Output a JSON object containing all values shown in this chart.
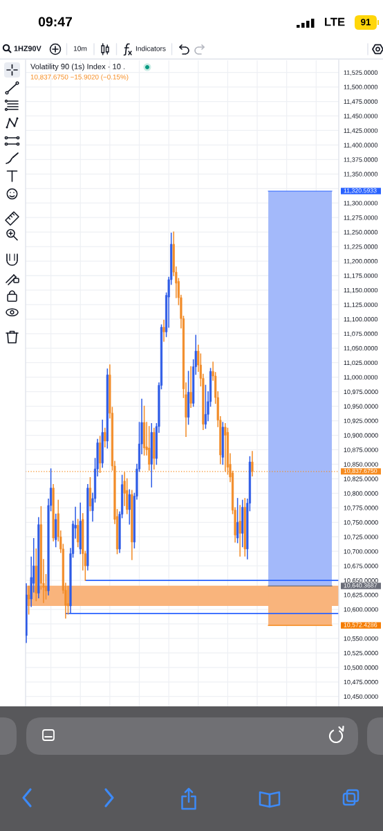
{
  "chart_data": {
    "type": "candlestick",
    "title": "Volatility 90 (1s) Index · 10 .",
    "subtitle": "10,837.6750 −15.9020 (−0.15%)",
    "annotations": [
      "09:47",
      "LTE",
      "91",
      "1HZ90V",
      "10m",
      "Indicators"
    ],
    "categories": [
      null,
      null,
      null,
      null,
      null,
      null,
      null,
      null,
      null,
      null,
      null,
      null,
      null,
      null,
      null,
      null,
      null,
      null,
      null,
      null,
      null,
      null,
      null,
      null,
      null,
      null,
      null,
      null,
      null,
      null,
      null,
      null,
      null,
      null,
      null,
      null,
      null,
      null,
      null,
      null,
      null,
      null,
      null,
      null,
      null,
      null,
      null,
      null,
      null,
      null,
      null,
      null,
      null,
      null,
      null,
      null,
      null,
      null,
      null,
      null,
      null,
      null,
      null,
      null,
      null,
      null,
      null,
      null,
      null,
      null,
      null,
      null,
      null,
      null,
      null,
      null,
      null,
      null,
      null,
      null,
      null,
      null,
      null,
      null,
      null,
      null,
      null,
      null,
      null,
      null,
      null,
      null,
      null,
      null,
      null,
      null,
      null,
      null,
      null,
      null,
      null,
      null,
      null,
      null,
      null,
      null,
      null,
      null,
      null,
      null,
      null,
      null,
      null,
      null,
      null,
      null,
      null,
      null,
      null,
      null,
      null,
      null,
      null,
      null,
      null,
      null,
      null,
      null
    ],
    "ohlc": [
      [
        10555,
        10644,
        10543,
        10625
      ],
      [
        10625,
        10640,
        10592,
        10618
      ],
      [
        10618,
        10690,
        10605,
        10655
      ],
      [
        10645,
        10722,
        10630,
        10675
      ],
      [
        10675,
        10704,
        10615,
        10628
      ],
      [
        10628,
        10758,
        10620,
        10746
      ],
      [
        10746,
        10777,
        10635,
        10645
      ],
      [
        10645,
        10686,
        10612,
        10638
      ],
      [
        10640,
        10660,
        10618,
        10632
      ],
      [
        10632,
        10790,
        10625,
        10779
      ],
      [
        10779,
        10842,
        10770,
        10809
      ],
      [
        10809,
        10815,
        10718,
        10723
      ],
      [
        10720,
        10764,
        10708,
        10755
      ],
      [
        10765,
        10788,
        10718,
        10725
      ],
      [
        10725,
        10735,
        10698,
        10704
      ],
      [
        10704,
        10712,
        10628,
        10633
      ],
      [
        10633,
        10645,
        10585,
        10607
      ],
      [
        10610,
        10640,
        10592,
        10606
      ],
      [
        10606,
        10705,
        10594,
        10696
      ],
      [
        10696,
        10752,
        10690,
        10747
      ],
      [
        10740,
        10776,
        10723,
        10745
      ],
      [
        10745,
        10755,
        10708,
        10716
      ],
      [
        10704,
        10783,
        10696,
        10752
      ],
      [
        10755,
        10765,
        10668,
        10696
      ],
      [
        10696,
        10700,
        10650,
        10675
      ],
      [
        10675,
        10815,
        10668,
        10809
      ],
      [
        10809,
        10827,
        10770,
        10778
      ],
      [
        10770,
        10800,
        10752,
        10791
      ],
      [
        10791,
        10860,
        10785,
        10842
      ],
      [
        10842,
        10893,
        10830,
        10887
      ],
      [
        10887,
        10898,
        10836,
        10852
      ],
      [
        10852,
        10926,
        10845,
        10905
      ],
      [
        10905,
        10912,
        10880,
        10890
      ],
      [
        10890,
        11014,
        10878,
        11004
      ],
      [
        11004,
        11021,
        10930,
        10938
      ],
      [
        10938,
        10948,
        10840,
        10847
      ],
      [
        10847,
        10855,
        10748,
        10755
      ],
      [
        10760,
        10772,
        10696,
        10704
      ],
      [
        10704,
        10768,
        10698,
        10764
      ],
      [
        10764,
        10831,
        10758,
        10815
      ],
      [
        10821,
        10836,
        10779,
        10800
      ],
      [
        10805,
        10825,
        10765,
        10772
      ],
      [
        10772,
        10806,
        10747,
        10798
      ],
      [
        10798,
        10805,
        10686,
        10716
      ],
      [
        10716,
        10800,
        10706,
        10795
      ],
      [
        10795,
        10850,
        10790,
        10842
      ],
      [
        10842,
        10922,
        10838,
        10885
      ],
      [
        10885,
        10962,
        10868,
        10922
      ],
      [
        10922,
        10950,
        10866,
        10878
      ],
      [
        10880,
        10922,
        10866,
        10875
      ],
      [
        10878,
        10915,
        10840,
        10850
      ],
      [
        10850,
        10920,
        10811,
        10905
      ],
      [
        10905,
        10912,
        10842,
        10860
      ],
      [
        10860,
        10920,
        10850,
        10915
      ],
      [
        10915,
        10990,
        10905,
        10986
      ],
      [
        10986,
        11090,
        10980,
        11086
      ],
      [
        11086,
        11098,
        11062,
        11078
      ],
      [
        11078,
        11145,
        11070,
        11141
      ],
      [
        11138,
        11172,
        11086,
        11168
      ],
      [
        11168,
        11248,
        11160,
        11229
      ],
      [
        11229,
        11250,
        11175,
        11181
      ],
      [
        11181,
        11190,
        11137,
        11162
      ],
      [
        11165,
        11170,
        11125,
        11137
      ],
      [
        11137,
        11141,
        11085,
        11101
      ],
      [
        11101,
        11105,
        10965,
        10980
      ],
      [
        10970,
        10990,
        10898,
        10931
      ],
      [
        10931,
        11010,
        10919,
        10974
      ],
      [
        10974,
        11018,
        10948,
        10955
      ],
      [
        10955,
        11030,
        10950,
        11018
      ],
      [
        11018,
        11072,
        11005,
        11045
      ],
      [
        11045,
        11055,
        11010,
        11021
      ],
      [
        11021,
        11040,
        10985,
        10998
      ],
      [
        10998,
        11005,
        10910,
        10919
      ],
      [
        10919,
        10986,
        10912,
        10936
      ],
      [
        10936,
        10975,
        10925,
        10958
      ],
      [
        10958,
        11015,
        10950,
        11010
      ],
      [
        11010,
        11026,
        10995,
        11002
      ],
      [
        11002,
        11008,
        10955,
        10965
      ],
      [
        10965,
        10975,
        10915,
        10926
      ],
      [
        10926,
        10932,
        10851,
        10866
      ],
      [
        10862,
        10922,
        10850,
        10914
      ],
      [
        10914,
        10920,
        10838,
        10900
      ],
      [
        10905,
        10912,
        10833,
        10845
      ],
      [
        10850,
        10868,
        10820,
        10828
      ],
      [
        10835,
        10838,
        10765,
        10771
      ],
      [
        10771,
        10775,
        10716,
        10728
      ],
      [
        10723,
        10791,
        10715,
        10750
      ],
      [
        10752,
        10779,
        10692,
        10731
      ],
      [
        10731,
        10788,
        10708,
        10776
      ],
      [
        10776,
        10791,
        10692,
        10704
      ],
      [
        10704,
        10790,
        10687,
        10783
      ],
      [
        10783,
        10863,
        10770,
        10854
      ],
      [
        10854,
        10872,
        10830,
        10837.675
      ],
      null,
      null,
      null,
      null,
      null,
      null,
      null,
      null,
      null,
      null,
      null,
      null,
      null,
      null,
      null,
      null,
      null,
      null,
      null,
      null,
      null,
      null,
      null,
      null,
      null,
      null,
      null,
      null,
      null,
      null,
      null,
      null,
      null,
      null,
      null
    ],
    "colors": [
      "#2e5ce6",
      "#f28c28",
      "#2e5ce6",
      "#2e5ce6",
      "#f28c28",
      "#2e5ce6",
      "#f28c28",
      "#f28c28",
      "#f28c28",
      "#2e5ce6",
      "#2e5ce6",
      "#f28c28",
      "#2e5ce6",
      "#f28c28",
      "#f28c28",
      "#f28c28",
      "#f28c28",
      "#f28c28",
      "#2e5ce6",
      "#2e5ce6",
      "#2e5ce6",
      "#f28c28",
      "#2e5ce6",
      "#f28c28",
      "#f28c28",
      "#2e5ce6",
      "#f28c28",
      "#2e5ce6",
      "#2e5ce6",
      "#2e5ce6",
      "#f28c28",
      "#2e5ce6",
      "#f28c28",
      "#2e5ce6",
      "#f28c28",
      "#f28c28",
      "#f28c28",
      "#f28c28",
      "#2e5ce6",
      "#2e5ce6",
      "#f28c28",
      "#f28c28",
      "#2e5ce6",
      "#f28c28",
      "#2e5ce6",
      "#2e5ce6",
      "#2e5ce6",
      "#2e5ce6",
      "#f28c28",
      "#f28c28",
      "#f28c28",
      "#2e5ce6",
      "#f28c28",
      "#2e5ce6",
      "#2e5ce6",
      "#2e5ce6",
      "#f28c28",
      "#2e5ce6",
      "#2e5ce6",
      "#2e5ce6",
      "#f28c28",
      "#f28c28",
      "#f28c28",
      "#f28c28",
      "#f28c28",
      "#f28c28",
      "#2e5ce6",
      "#f28c28",
      "#2e5ce6",
      "#2e5ce6",
      "#f28c28",
      "#f28c28",
      "#f28c28",
      "#2e5ce6",
      "#2e5ce6",
      "#2e5ce6",
      "#f28c28",
      "#f28c28",
      "#f28c28",
      "#f28c28",
      "#2e5ce6",
      "#f28c28",
      "#f28c28",
      "#f28c28",
      "#f28c28",
      "#f28c28",
      "#2e5ce6",
      "#f28c28",
      "#2e5ce6",
      "#f28c28",
      "#2e5ce6",
      "#2e5ce6",
      "#f28c28",
      null,
      null,
      null,
      null,
      null,
      null,
      null,
      null,
      null,
      null,
      null,
      null,
      null,
      null,
      null,
      null,
      null,
      null,
      null,
      null,
      null,
      null,
      null,
      null,
      null,
      null,
      null,
      null,
      null,
      null,
      null,
      null,
      null,
      null,
      null
    ],
    "series": [
      {
        "type": "line",
        "color": "#2962ff",
        "values": [
          null,
          null,
          null,
          null,
          null,
          null,
          null,
          null,
          null,
          null,
          null,
          null,
          null,
          null,
          null,
          null,
          null,
          null,
          null,
          null,
          null,
          null,
          null,
          null,
          10650,
          10650,
          10650,
          10650,
          10650,
          10650,
          10650,
          10650,
          10650,
          10650,
          10650,
          10650,
          10650,
          10650,
          10650,
          10650,
          10650,
          10650,
          10650,
          10650,
          10650,
          10650,
          10650,
          10650,
          10650,
          10650,
          10650,
          10650,
          10650,
          10650,
          10650,
          10650,
          10650,
          10650,
          10650,
          10650,
          10650,
          10650,
          10650,
          10650,
          10650,
          10650,
          10650,
          10650,
          10650,
          10650,
          10650,
          10650,
          10650,
          10650,
          10650,
          10650,
          10650,
          10650,
          10650,
          10650,
          10650,
          10650,
          10650,
          10650,
          10650,
          10650,
          10650,
          10650,
          10650,
          10650,
          10650,
          10650,
          10650,
          10650,
          10650,
          10650,
          10650,
          10650,
          10650,
          10650,
          10650,
          10650,
          10650,
          10650,
          10650,
          10650,
          10650,
          10650,
          10650,
          10650,
          10650,
          10650,
          10650,
          10650,
          10650,
          10650,
          10650,
          10650,
          10650,
          10650,
          10650,
          10650,
          10650,
          10650,
          10650,
          10650,
          10650,
          10650
        ]
      },
      {
        "type": "line",
        "color": "#2962ff",
        "values": [
          null,
          null,
          null,
          null,
          null,
          null,
          null,
          null,
          null,
          null,
          null,
          null,
          null,
          null,
          null,
          null,
          10593,
          10593,
          10593,
          10593,
          10593,
          10593,
          10593,
          10593,
          10593,
          10593,
          10593,
          10593,
          10593,
          10593,
          10593,
          10593,
          10593,
          10593,
          10593,
          10593,
          10593,
          10593,
          10593,
          10593,
          10593,
          10593,
          10593,
          10593,
          10593,
          10593,
          10593,
          10593,
          10593,
          10593,
          10593,
          10593,
          10593,
          10593,
          10593,
          10593,
          10593,
          10593,
          10593,
          10593,
          10593,
          10593,
          10593,
          10593,
          10593,
          10593,
          10593,
          10593,
          10593,
          10593,
          10593,
          10593,
          10593,
          10593,
          10593,
          10593,
          10593,
          10593,
          10593,
          10593,
          10593,
          10593,
          10593,
          10593,
          10593,
          10593,
          10593,
          10593,
          10593,
          10593,
          10593,
          10593,
          10593,
          10593,
          10593,
          10593,
          10593,
          10593,
          10593,
          10593,
          10593,
          10593,
          10593,
          10593,
          10593,
          10593,
          10593,
          10593,
          10593,
          10593,
          10593,
          10593,
          10593,
          10593,
          10593,
          10593,
          10593,
          10593,
          10593,
          10593,
          10593,
          10593,
          10593,
          10593,
          10593,
          10593,
          10593,
          10593
        ]
      }
    ],
    "bands": [
      {
        "axis": "y",
        "from": 10606,
        "to": 10641,
        "color": "#f9b47c"
      },
      {
        "axis": "y",
        "from": 10640.3687,
        "to": 11320.5933,
        "color": "#a3b9fa"
      },
      {
        "axis": "y",
        "from": 10572.4286,
        "to": 10640.3687,
        "color": "#f9b47c"
      }
    ],
    "ref_lines": [
      {
        "axis": "y",
        "value": 10837.675,
        "label": "10,837.6750",
        "color": "#f68b1f",
        "line_style": "dotted"
      },
      {
        "axis": "y",
        "value": 11320.5933,
        "label": "11,320.5933",
        "color": "#2962ff"
      },
      {
        "axis": "y",
        "value": 10640.3687,
        "label": "10,640.3687",
        "color": "#6a6d78"
      },
      {
        "axis": "y",
        "value": 10572.4286,
        "label": "10,572.4286",
        "color": "#f57c00"
      }
    ],
    "ylim": [
      10433,
      11546
    ],
    "yticks": [
      {
        "value": 10450,
        "label": "10,450.0000"
      },
      {
        "value": 10475,
        "label": "10,475.0000"
      },
      {
        "value": 10500,
        "label": "10,500.0000"
      },
      {
        "value": 10525,
        "label": "10,525.0000"
      },
      {
        "value": 10550,
        "label": "10,550.0000"
      },
      {
        "value": 10575,
        "label": null
      },
      {
        "value": 10600,
        "label": "10,600.0000"
      },
      {
        "value": 10625,
        "label": "10,625.0000"
      },
      {
        "value": 10650,
        "label": "10,650.0000"
      },
      {
        "value": 10675,
        "label": "10,675.0000"
      },
      {
        "value": 10700,
        "label": "10,700.0000"
      },
      {
        "value": 10725,
        "label": "10,725.0000"
      },
      {
        "value": 10750,
        "label": "10,750.0000"
      },
      {
        "value": 10775,
        "label": "10,775.0000"
      },
      {
        "value": 10800,
        "label": "10,800.0000"
      },
      {
        "value": 10825,
        "label": "10,825.0000"
      },
      {
        "value": 10850,
        "label": "10,850.0000"
      },
      {
        "value": 10875,
        "label": "10,875.0000"
      },
      {
        "value": 10900,
        "label": "10,900.0000"
      },
      {
        "value": 10925,
        "label": "10,925.0000"
      },
      {
        "value": 10950,
        "label": "10,950.0000"
      },
      {
        "value": 10975,
        "label": "10,975.0000"
      },
      {
        "value": 11000,
        "label": "11,000.0000"
      },
      {
        "value": 11025,
        "label": "11,025.0000"
      },
      {
        "value": 11050,
        "label": "11,050.0000"
      },
      {
        "value": 11075,
        "label": "11,075.0000"
      },
      {
        "value": 11100,
        "label": "11,100.0000"
      },
      {
        "value": 11125,
        "label": "11,125.0000"
      },
      {
        "value": 11150,
        "label": "11,150.0000"
      },
      {
        "value": 11175,
        "label": "11,175.0000"
      },
      {
        "value": 11200,
        "label": "11,200.0000"
      },
      {
        "value": 11225,
        "label": "11,225.0000"
      },
      {
        "value": 11250,
        "label": "11,250.0000"
      },
      {
        "value": 11275,
        "label": "11,275.0000"
      },
      {
        "value": 11300,
        "label": "11,300.0000"
      },
      {
        "value": 11325,
        "label": null
      },
      {
        "value": 11350,
        "label": "11,350.0000"
      },
      {
        "value": 11375,
        "label": "11,375.0000"
      },
      {
        "value": 11400,
        "label": "11,400.0000"
      },
      {
        "value": 11425,
        "label": "11,425.0000"
      },
      {
        "value": 11450,
        "label": "11,450.0000"
      },
      {
        "value": 11475,
        "label": "11,475.0000"
      },
      {
        "value": 11500,
        "label": "11,500.0000"
      },
      {
        "value": 11525,
        "label": "11,525.0000"
      }
    ],
    "grid": true,
    "tick_labels": "y"
  }
}
